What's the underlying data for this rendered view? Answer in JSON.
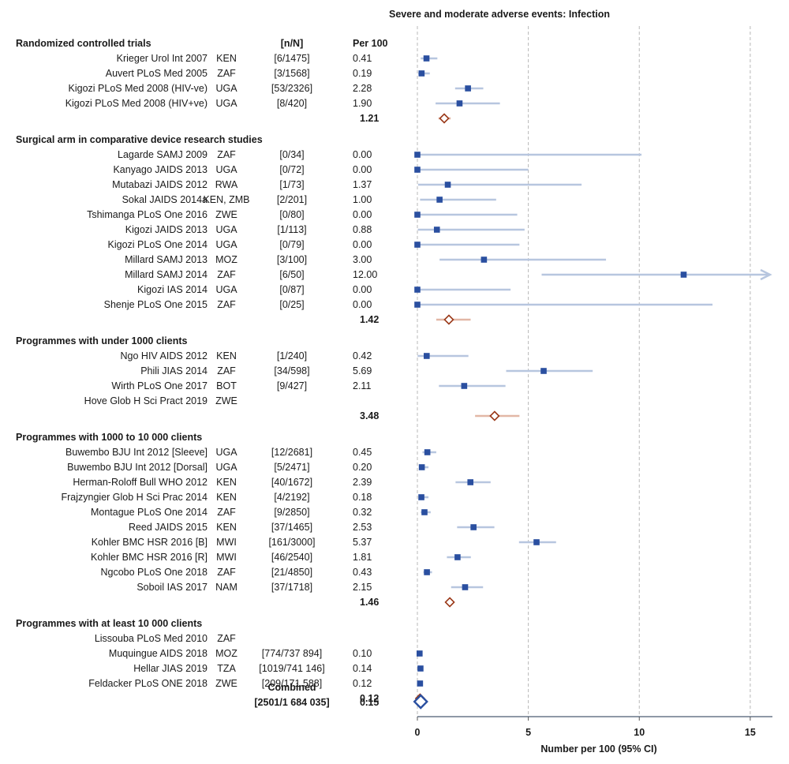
{
  "chart_data": {
    "type": "forest",
    "title": "Severe and moderate adverse events: Infection",
    "xlabel": "Number per 100  (95% CI)",
    "xlim": [
      0,
      16
    ],
    "xticks": [
      0,
      5,
      10,
      15
    ],
    "grid": "vertical dashed at x ticks",
    "headers": {
      "study": "Randomized controlled trials",
      "nN": "[n/N]",
      "per100": "Per 100"
    },
    "colors": {
      "study_marker": "#2a4fa0",
      "ci_line": "#b7c6df",
      "pooled_ci": "#e2b7a6",
      "pooled_marker": "#9b3a1a",
      "combined_marker": "#2a4fa0"
    },
    "groups": [
      {
        "name": "Randomized controlled trials",
        "studies": [
          {
            "label": "Krieger Urol Int 2007",
            "country": "KEN",
            "nN": "[6/1475]",
            "per100": "0.41",
            "est": 0.41,
            "lo": 0.15,
            "hi": 0.9
          },
          {
            "label": "Auvert PLoS Med 2005",
            "country": "ZAF",
            "nN": "[3/1568]",
            "per100": "0.19",
            "est": 0.19,
            "lo": 0.04,
            "hi": 0.56
          },
          {
            "label": "Kigozi PLoS Med 2008 (HIV-ve)",
            "country": "UGA",
            "nN": "[53/2326]",
            "per100": "2.28",
            "est": 2.28,
            "lo": 1.7,
            "hi": 2.97
          },
          {
            "label": "Kigozi PLoS Med 2008 (HIV+ve)",
            "country": "UGA",
            "nN": "[8/420]",
            "per100": "1.90",
            "est": 1.9,
            "lo": 0.82,
            "hi": 3.72
          }
        ],
        "pooled": {
          "value": "1.21",
          "est": 1.21,
          "lo": 0.95,
          "hi": 1.5
        }
      },
      {
        "name": "Surgical arm in comparative device research studies",
        "studies": [
          {
            "label": "Lagarde SAMJ 2009",
            "country": "ZAF",
            "nN": "[0/34]",
            "per100": "0.00",
            "est": 0,
            "lo": 0,
            "hi": 10.1
          },
          {
            "label": "Kanyago JAIDS 2013",
            "country": "UGA",
            "nN": "[0/72]",
            "per100": "0.00",
            "est": 0,
            "lo": 0,
            "hi": 5.0
          },
          {
            "label": "Mutabazi JAIDS 2012",
            "country": "RWA",
            "nN": "[1/73]",
            "per100": "1.37",
            "est": 1.37,
            "lo": 0.03,
            "hi": 7.4
          },
          {
            "label": "Sokal JAIDS 2014a",
            "country": "KEN, ZMB",
            "nN": "[2/201]",
            "per100": "1.00",
            "est": 1.0,
            "lo": 0.12,
            "hi": 3.55
          },
          {
            "label": "Tshimanga PLoS One 2016",
            "country": "ZWE",
            "nN": "[0/80]",
            "per100": "0.00",
            "est": 0,
            "lo": 0,
            "hi": 4.5
          },
          {
            "label": "Kigozi JAIDS 2013",
            "country": "UGA",
            "nN": "[1/113]",
            "per100": "0.88",
            "est": 0.88,
            "lo": 0.02,
            "hi": 4.83
          },
          {
            "label": "Kigozi PLoS One 2014",
            "country": "UGA",
            "nN": "[0/79]",
            "per100": "0.00",
            "est": 0,
            "lo": 0,
            "hi": 4.6
          },
          {
            "label": "Millard SAMJ 2013",
            "country": "MOZ",
            "nN": "[3/100]",
            "per100": "3.00",
            "est": 3.0,
            "lo": 1.0,
            "hi": 8.5
          },
          {
            "label": "Millard SAMJ 2014",
            "country": "ZAF",
            "nN": "[6/50]",
            "per100": "12.00",
            "est": 12.0,
            "lo": 5.6,
            "hi": 16.0,
            "arrow": true
          },
          {
            "label": "Kigozi IAS 2014",
            "country": "UGA",
            "nN": "[0/87]",
            "per100": "0.00",
            "est": 0,
            "lo": 0,
            "hi": 4.2
          },
          {
            "label": "Shenje PLoS One 2015",
            "country": "ZAF",
            "nN": "[0/25]",
            "per100": "0.00",
            "est": 0,
            "lo": 0,
            "hi": 13.3
          }
        ],
        "pooled": {
          "value": "1.42",
          "est": 1.42,
          "lo": 0.85,
          "hi": 2.4
        }
      },
      {
        "name": "Programmes with under 1000 clients",
        "studies": [
          {
            "label": "Ngo HIV AIDS 2012",
            "country": "KEN",
            "nN": "[1/240]",
            "per100": "0.42",
            "est": 0.42,
            "lo": 0.01,
            "hi": 2.3
          },
          {
            "label": "Phili JIAS 2014",
            "country": "ZAF",
            "nN": "[34/598]",
            "per100": "5.69",
            "est": 5.69,
            "lo": 4.0,
            "hi": 7.9
          },
          {
            "label": "Wirth PLoS One 2017",
            "country": "BOT",
            "nN": "[9/427]",
            "per100": "2.11",
            "est": 2.11,
            "lo": 0.97,
            "hi": 3.97
          },
          {
            "label": "Hove Glob H Sci Pract 2019",
            "country": "ZWE",
            "nN": "",
            "per100": ""
          }
        ],
        "pooled": {
          "value": "3.48",
          "est": 3.48,
          "lo": 2.6,
          "hi": 4.6
        }
      },
      {
        "name": "Programmes with 1000 to 10 000 clients",
        "studies": [
          {
            "label": "Buwembo BJU Int 2012 [Sleeve]",
            "country": "UGA",
            "nN": "[12/2681]",
            "per100": "0.45",
            "est": 0.45,
            "lo": 0.23,
            "hi": 0.85
          },
          {
            "label": "Buwembo BJU Int 2012 [Dorsal]",
            "country": "UGA",
            "nN": "[5/2471]",
            "per100": "0.20",
            "est": 0.2,
            "lo": 0.07,
            "hi": 0.5
          },
          {
            "label": "Herman-Roloff Bull WHO 2012",
            "country": "KEN",
            "nN": "[40/1672]",
            "per100": "2.39",
            "est": 2.39,
            "lo": 1.72,
            "hi": 3.3
          },
          {
            "label": "Frajzyngier Glob H Sci Prac 2014",
            "country": "KEN",
            "nN": "[4/2192]",
            "per100": "0.18",
            "est": 0.18,
            "lo": 0.05,
            "hi": 0.5
          },
          {
            "label": "Montague PLoS One 2014",
            "country": "ZAF",
            "nN": "[9/2850]",
            "per100": "0.32",
            "est": 0.32,
            "lo": 0.15,
            "hi": 0.6
          },
          {
            "label": "Reed JAIDS 2015",
            "country": "KEN",
            "nN": "[37/1465]",
            "per100": "2.53",
            "est": 2.53,
            "lo": 1.79,
            "hi": 3.47
          },
          {
            "label": "Kohler BMC HSR 2016 [B]",
            "country": "MWI",
            "nN": "[161/3000]",
            "per100": "5.37",
            "est": 5.37,
            "lo": 4.58,
            "hi": 6.25
          },
          {
            "label": "Kohler BMC HSR 2016 [R]",
            "country": "MWI",
            "nN": "[46/2540]",
            "per100": "1.81",
            "est": 1.81,
            "lo": 1.33,
            "hi": 2.41
          },
          {
            "label": "Ngcobo PLoS One 2018",
            "country": "ZAF",
            "nN": "[21/4850]",
            "per100": "0.43",
            "est": 0.43,
            "lo": 0.27,
            "hi": 0.66
          },
          {
            "label": "Soboil IAS 2017",
            "country": "NAM",
            "nN": "[37/1718]",
            "per100": "2.15",
            "est": 2.15,
            "lo": 1.52,
            "hi": 2.96
          }
        ],
        "pooled": {
          "value": "1.46",
          "est": 1.46,
          "lo": 1.3,
          "hi": 1.6
        }
      },
      {
        "name": "Programmes with at least 10 000 clients",
        "studies": [
          {
            "label": "Lissouba PLoS Med 2010",
            "country": "ZAF",
            "nN": "",
            "per100": ""
          },
          {
            "label": "Muquingue AIDS 2018",
            "country": "MOZ",
            "nN": "[774/737 894]",
            "per100": "0.10",
            "est": 0.1,
            "lo": 0.09,
            "hi": 0.11
          },
          {
            "label": "Hellar JIAS 2019",
            "country": "TZA",
            "nN": "[1019/741 146]",
            "per100": "0.14",
            "est": 0.14,
            "lo": 0.13,
            "hi": 0.15
          },
          {
            "label": "Feldacker PLoS ONE 2018",
            "country": "ZWE",
            "nN": "[209/171 588]",
            "per100": "0.12",
            "est": 0.12,
            "lo": 0.11,
            "hi": 0.14
          }
        ],
        "pooled": {
          "value": "0.12",
          "est": 0.12,
          "lo": 0.1,
          "hi": 0.14
        }
      }
    ],
    "combined": {
      "label": "Combined",
      "nN": "[2501/1 684 035]",
      "value": "0.15",
      "est": 0.15
    }
  }
}
